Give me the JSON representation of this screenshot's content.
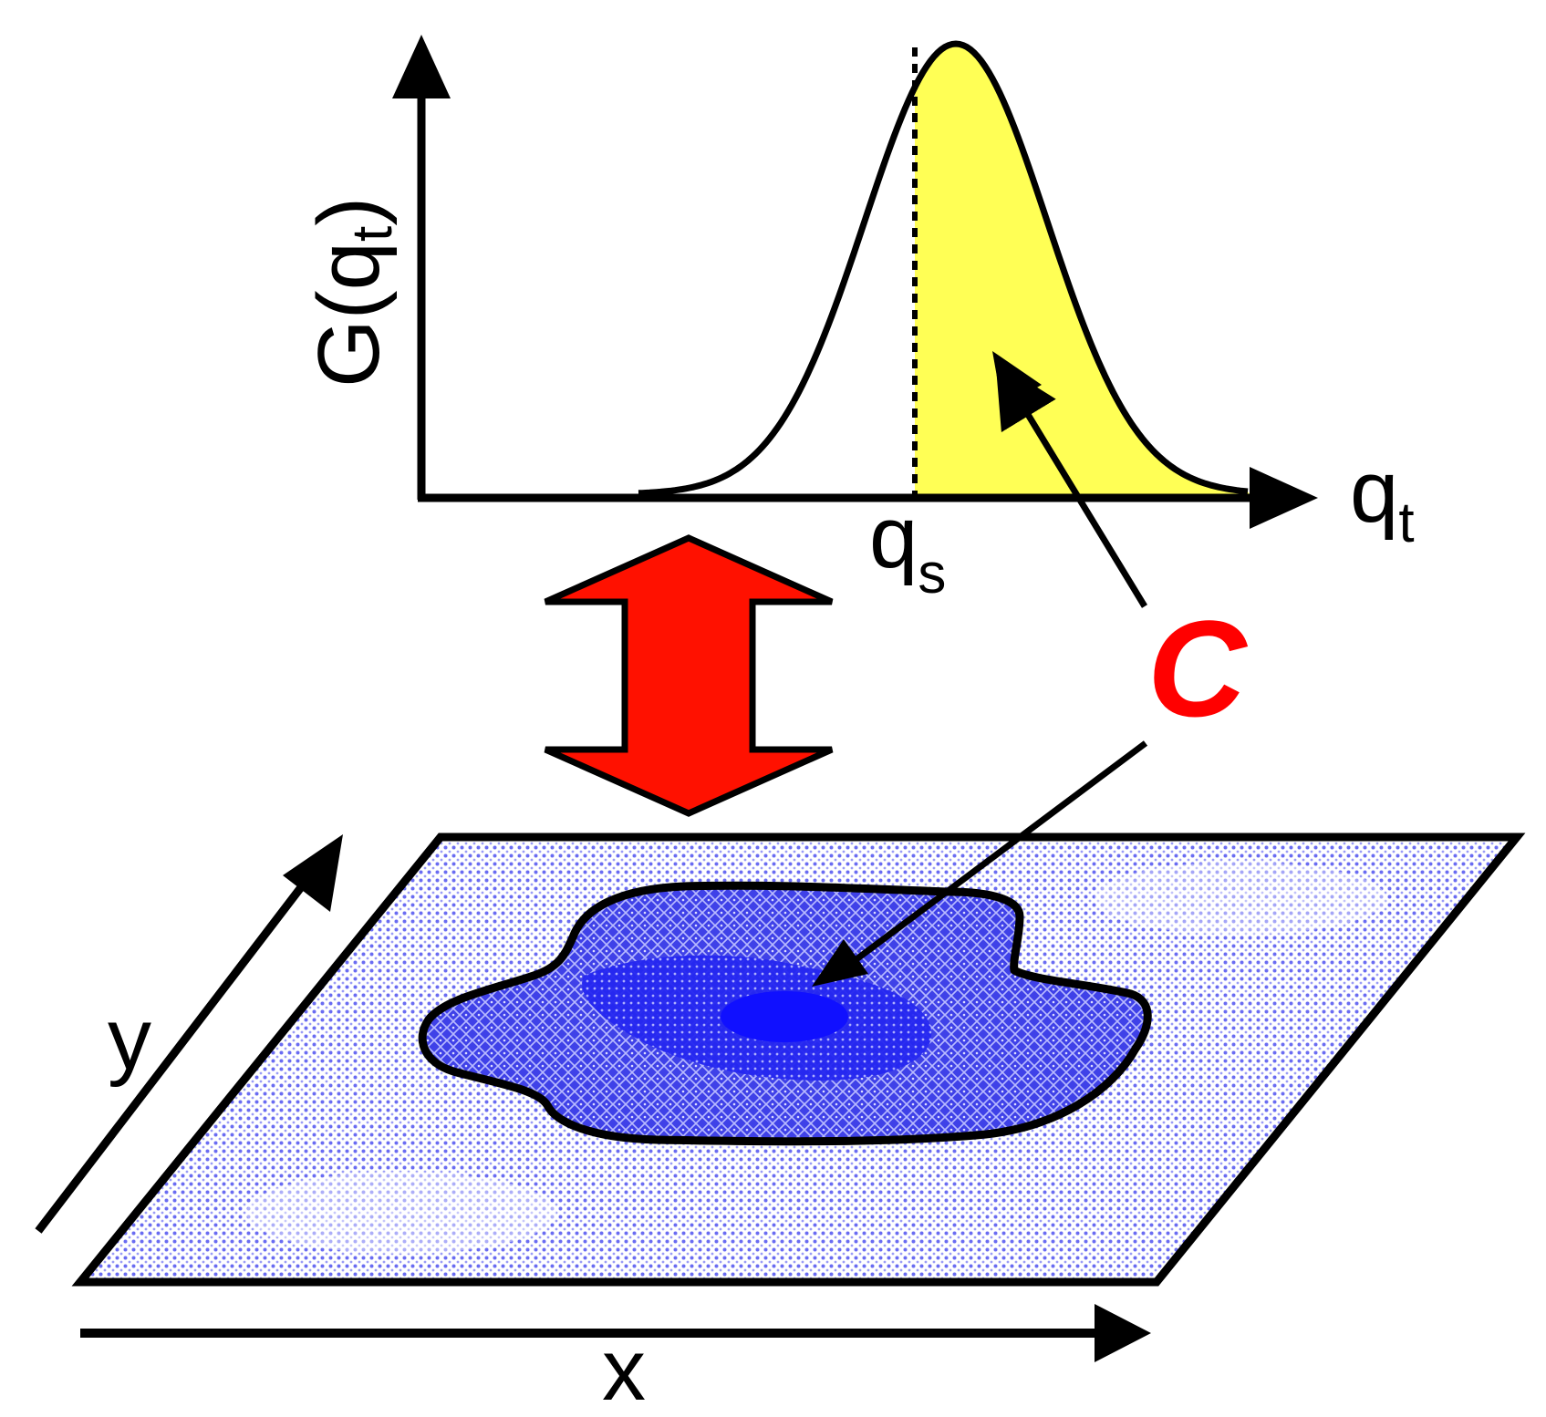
{
  "labels": {
    "y_axis_main": "G(q",
    "y_axis_sub": "t",
    "y_axis_close": ")",
    "x_axis_main": "q",
    "x_axis_sub": "t",
    "threshold_main": "q",
    "threshold_sub": "s",
    "region_marker": "C",
    "plane_x_axis": "x",
    "plane_y_axis": "y"
  },
  "colors": {
    "shaded_tail": "#ffff55",
    "double_arrow": "#ff1100",
    "plane_fill": "#d8dcff",
    "plume_outer": "#5a5cf0",
    "plume_mid": "#3a3cf2",
    "plume_core": "#1010ff",
    "marker_text": "#ff0000"
  }
}
